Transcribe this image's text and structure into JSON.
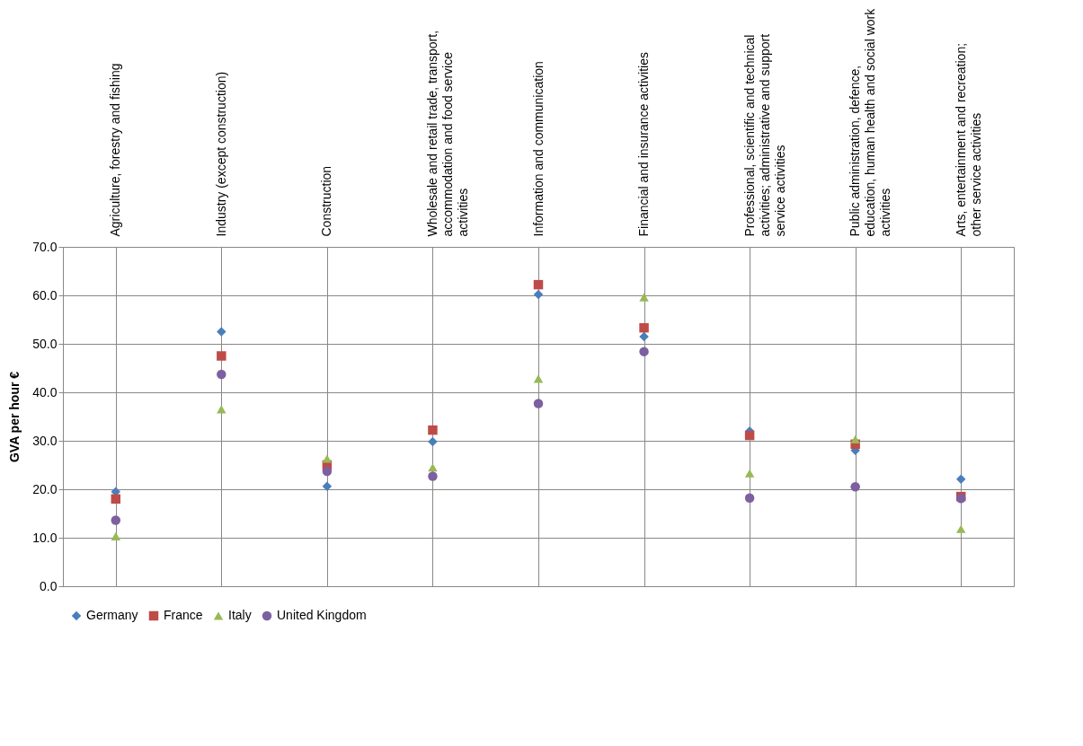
{
  "chart_data": {
    "type": "scatter",
    "ylabel": "GVA per hour €",
    "categories": [
      "Agriculture, forestry and fishing",
      "Industry (except construction)",
      "Construction",
      "Wholesale and retail trade, transport, accommodation and food service activities",
      "Information and communication",
      "Financial and insurance activities",
      "Professional, scientific and technical activities; administrative and support service activities",
      "Public administration, defence, education, human health and social work activities",
      "Arts, entertainment and recreation; other service activities"
    ],
    "series": [
      {
        "name": "Germany",
        "color": "#4a7ebb",
        "marker": "diamond",
        "values": [
          19.5,
          52.5,
          20.6,
          29.8,
          60.2,
          51.5,
          32.0,
          28.0,
          22.1
        ]
      },
      {
        "name": "France",
        "color": "#be4b48",
        "marker": "square",
        "values": [
          18.0,
          47.5,
          25.0,
          32.2,
          62.2,
          53.3,
          31.1,
          29.3,
          18.5
        ]
      },
      {
        "name": "Italy",
        "color": "#98b954",
        "marker": "triangle",
        "values": [
          10.3,
          36.5,
          26.3,
          24.5,
          42.8,
          59.6,
          23.3,
          30.3,
          11.8
        ]
      },
      {
        "name": "United Kingdom",
        "color": "#7d60a0",
        "marker": "circle",
        "values": [
          13.6,
          43.7,
          23.7,
          22.7,
          37.7,
          48.4,
          18.2,
          20.5,
          18.1
        ]
      }
    ],
    "ylim": [
      0,
      70
    ],
    "yticks": [
      {
        "value": 0,
        "label": "0.0"
      },
      {
        "value": 10,
        "label": "10.0"
      },
      {
        "value": 20,
        "label": "20.0"
      },
      {
        "value": 30,
        "label": "30.0"
      },
      {
        "value": 40,
        "label": "40.0"
      },
      {
        "value": 50,
        "label": "50.0"
      },
      {
        "value": 60,
        "label": "60.0"
      },
      {
        "value": 70,
        "label": "70.0"
      }
    ],
    "grid": true,
    "legend": "bottom"
  }
}
